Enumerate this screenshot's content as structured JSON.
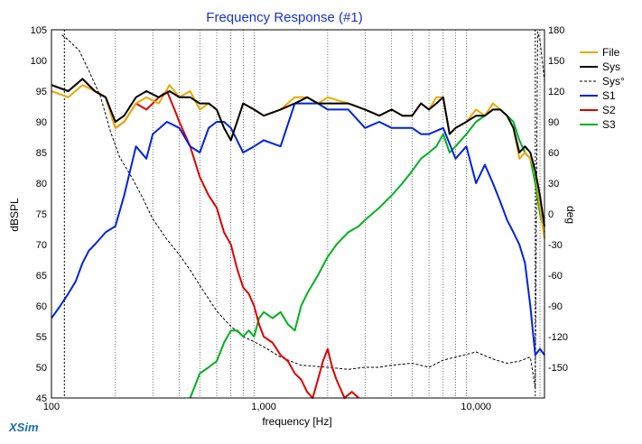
{
  "brand": "XSim",
  "chart_data": {
    "type": "line",
    "title": "Frequency Response (#1)",
    "xlabel": "frequency [Hz]",
    "ylabel": "dBSPL",
    "y2label": "deg",
    "xscale": "log",
    "xlim": [
      100,
      21000
    ],
    "ylim": [
      45,
      105
    ],
    "y2lim": [
      -180,
      180
    ],
    "xticks": [
      100,
      1000,
      10000
    ],
    "xtick_labels": [
      "100",
      "1,000",
      "10,000"
    ],
    "yticks": [
      45,
      50,
      55,
      60,
      65,
      70,
      75,
      80,
      85,
      90,
      95,
      100,
      105
    ],
    "y2ticks": [
      -150,
      -120,
      -90,
      -60,
      -30,
      0,
      30,
      60,
      90,
      120,
      150,
      180
    ],
    "vlines": [
      {
        "x": 115,
        "label": ""
      },
      {
        "x": 19000,
        "label": ""
      }
    ],
    "legend_position": "top-right",
    "series": [
      {
        "name": "File",
        "color": "#e8a800",
        "axis": "left",
        "style": "solid",
        "x": [
          100,
          120,
          140,
          160,
          180,
          200,
          220,
          250,
          280,
          320,
          360,
          400,
          450,
          500,
          550,
          600,
          650,
          700,
          800,
          900,
          1000,
          1200,
          1400,
          1600,
          1800,
          2000,
          2500,
          3000,
          3500,
          4000,
          4500,
          5000,
          5500,
          6000,
          6500,
          7000,
          7500,
          8000,
          9000,
          10000,
          11000,
          12000,
          13000,
          14000,
          15000,
          16000,
          17000,
          18000,
          19000,
          20000,
          21000
        ],
        "y": [
          95,
          94,
          96,
          95,
          94,
          89,
          90,
          93,
          94,
          93,
          96,
          94,
          95,
          92,
          93,
          92,
          89,
          87,
          93,
          92,
          91,
          92,
          94,
          94,
          93,
          94,
          93,
          92,
          91,
          92,
          91,
          91,
          93,
          92,
          94,
          94,
          88,
          89,
          90,
          92,
          91,
          93,
          92,
          91,
          89,
          84,
          85,
          84,
          82,
          76,
          71
        ]
      },
      {
        "name": "Sys",
        "color": "#000000",
        "axis": "left",
        "style": "solid",
        "x": [
          100,
          120,
          140,
          160,
          180,
          200,
          220,
          250,
          280,
          320,
          360,
          400,
          450,
          500,
          550,
          600,
          650,
          700,
          800,
          900,
          1000,
          1200,
          1400,
          1600,
          1800,
          2000,
          2500,
          3000,
          3500,
          4000,
          4500,
          5000,
          5500,
          6000,
          6500,
          7000,
          7500,
          8000,
          9000,
          10000,
          11000,
          12000,
          13000,
          14000,
          15000,
          16000,
          17000,
          18000,
          19000,
          20000,
          21000
        ],
        "y": [
          96,
          95,
          97,
          95,
          94,
          90,
          91,
          94,
          95,
          94,
          95,
          94,
          94,
          93,
          93,
          92,
          89,
          87,
          93,
          92,
          91,
          92,
          93,
          94,
          93,
          93,
          93,
          92,
          91,
          92,
          91,
          91,
          93,
          92,
          93,
          94,
          88,
          89,
          90,
          91,
          91,
          92,
          92,
          91,
          89,
          85,
          86,
          85,
          82,
          78,
          73
        ]
      },
      {
        "name": "Sys°",
        "color": "#000000",
        "axis": "right",
        "style": "dashed",
        "x": [
          112,
          120,
          135,
          150,
          170,
          190,
          210,
          240,
          270,
          300,
          350,
          400,
          450,
          500,
          600,
          700,
          800,
          900,
          1000,
          1200,
          1500,
          2000,
          2500,
          3000,
          3500,
          4000,
          5000,
          6000,
          7000,
          8000,
          10000,
          12000,
          14000,
          16000,
          18000,
          19000,
          19500,
          20000,
          21000
        ],
        "y": [
          175,
          170,
          160,
          140,
          115,
          80,
          55,
          35,
          15,
          -5,
          -25,
          -40,
          -55,
          -70,
          -95,
          -110,
          -120,
          -125,
          -130,
          -140,
          -148,
          -150,
          -152,
          -150,
          -150,
          -148,
          -146,
          -150,
          -143,
          -140,
          -135,
          -142,
          -146,
          -144,
          -140,
          -170,
          178,
          170,
          130
        ]
      },
      {
        "name": "S1",
        "color": "#0022dd",
        "axis": "left",
        "style": "solid",
        "x": [
          100,
          110,
          120,
          130,
          140,
          150,
          160,
          180,
          200,
          220,
          250,
          280,
          300,
          350,
          400,
          450,
          500,
          550,
          600,
          650,
          700,
          800,
          900,
          1000,
          1200,
          1400,
          1600,
          1800,
          2000,
          2500,
          3000,
          3500,
          4000,
          5000,
          5500,
          6000,
          7000,
          8000,
          9000,
          10000,
          11000,
          12000,
          13000,
          14000,
          15000,
          16000,
          17000,
          18000,
          19000,
          20000,
          21000
        ],
        "y": [
          58,
          60,
          62,
          64,
          67,
          69,
          70,
          72,
          73,
          78,
          86,
          84,
          88,
          90,
          89,
          86,
          85,
          89,
          90,
          90,
          89,
          85,
          86,
          87,
          86,
          93,
          93,
          93,
          92,
          92,
          89,
          90,
          89,
          89,
          88,
          88,
          89,
          84,
          86,
          80,
          83,
          80,
          77,
          74,
          72,
          70,
          67,
          60,
          52,
          53,
          52
        ]
      },
      {
        "name": "S2",
        "color": "#dd0000",
        "axis": "left",
        "style": "solid",
        "x": [
          100,
          120,
          140,
          160,
          180,
          200,
          220,
          250,
          280,
          300,
          320,
          350,
          380,
          400,
          450,
          500,
          550,
          600,
          650,
          700,
          750,
          800,
          850,
          900,
          950,
          1000,
          1100,
          1200,
          1300,
          1400,
          1500,
          1600,
          1700,
          1800,
          1900,
          2000,
          2100,
          2200,
          2400,
          2600,
          2800
        ],
        "y": [
          96,
          95,
          97,
          95,
          94,
          89,
          90,
          93,
          92,
          93,
          94,
          95,
          92,
          90,
          86,
          81,
          78,
          76,
          72,
          70,
          66,
          63,
          62,
          60,
          57,
          55,
          54,
          52,
          51,
          49,
          48,
          46,
          45,
          48,
          51,
          53,
          50,
          48,
          45,
          46,
          45
        ]
      },
      {
        "name": "S3",
        "color": "#00b020",
        "axis": "left",
        "style": "solid",
        "x": [
          450,
          500,
          550,
          600,
          650,
          700,
          750,
          800,
          850,
          900,
          950,
          1000,
          1100,
          1200,
          1300,
          1400,
          1500,
          1600,
          1800,
          2000,
          2200,
          2500,
          2800,
          3000,
          3500,
          4000,
          4500,
          5000,
          5500,
          6000,
          6500,
          7000,
          7500,
          8000,
          9000,
          10000,
          11000,
          12000,
          13000,
          14000,
          15000,
          16000,
          17000,
          18000,
          19000,
          20000,
          21000
        ],
        "y": [
          45,
          49,
          50,
          51,
          54,
          56,
          56,
          55,
          56,
          55,
          58,
          59,
          58,
          59,
          57,
          56,
          60,
          62,
          65,
          68,
          70,
          72,
          73,
          74,
          76,
          78,
          80,
          82,
          84,
          85,
          86,
          88,
          85,
          86,
          88,
          90,
          91,
          92,
          92,
          91,
          90,
          87,
          85,
          84,
          80,
          75,
          72
        ]
      }
    ]
  }
}
